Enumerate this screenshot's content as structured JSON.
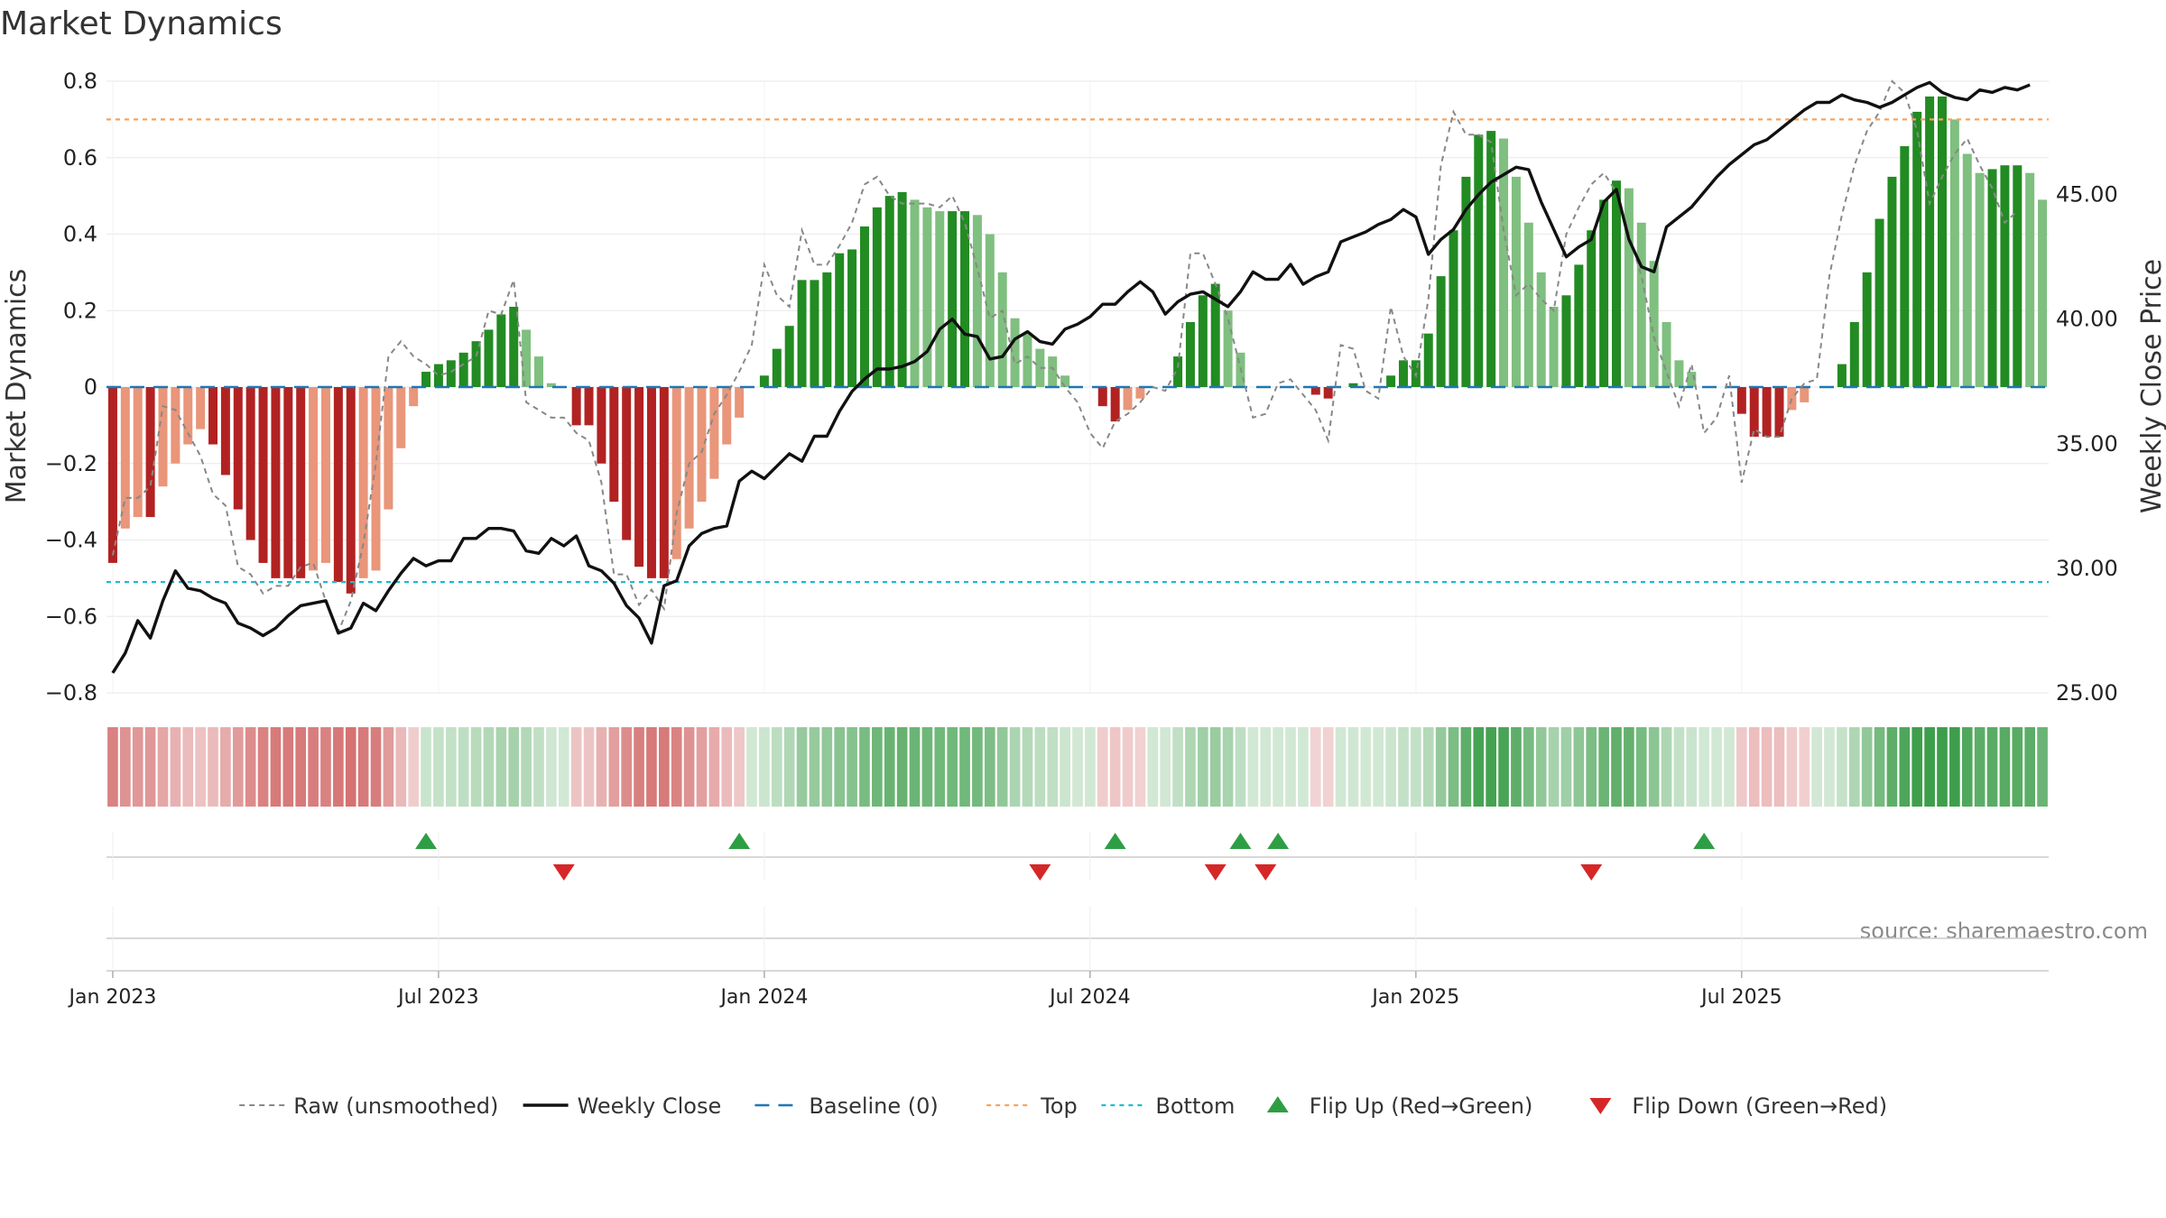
{
  "chart_data": {
    "type": "bar",
    "title": "Market Dynamics",
    "ylabel": "Market Dynamics",
    "y2label": "Weekly Close Price",
    "ylim": [
      -0.8,
      0.8
    ],
    "y2lim": [
      25.0,
      49.55
    ],
    "yticks": [
      "0.8",
      "0.6",
      "0.4",
      "0.2",
      "0",
      "−0.2",
      "−0.4",
      "−0.6",
      "−0.8"
    ],
    "yticks_values": [
      0.8,
      0.6,
      0.4,
      0.2,
      0,
      -0.2,
      -0.4,
      -0.6,
      -0.8
    ],
    "y2ticks": [
      "45.00",
      "40.00",
      "35.00",
      "30.00",
      "25.00"
    ],
    "y2ticks_values": [
      45,
      40,
      35,
      30,
      25
    ],
    "xticks": [
      "Jan 2023",
      "Jul 2023",
      "Jan 2024",
      "Jul 2024",
      "Jan 2025",
      "Jul 2025"
    ],
    "xticks_week_index": [
      0,
      26,
      52,
      78,
      104,
      130
    ],
    "top_level": 0.7,
    "bottom_level": -0.51,
    "baseline": 0,
    "grid": true,
    "legend_position": "bottom-center",
    "source": "source: sharemaestro.com",
    "colors": {
      "dark_red": "#b22222",
      "light_red": "#e9967a",
      "dark_green": "#228b22",
      "light_green": "#7fbf7f",
      "raw_line": "#888888",
      "close_line": "#111111",
      "baseline": "#1f77b4",
      "top": "#f4a460",
      "bottom": "#17becf",
      "flip_up": "#2e9e44",
      "flip_down": "#d62728"
    },
    "series": [
      {
        "name": "Market Dynamics",
        "values": [
          -0.46,
          -0.37,
          -0.34,
          -0.34,
          -0.26,
          -0.2,
          -0.15,
          -0.11,
          -0.15,
          -0.23,
          -0.32,
          -0.4,
          -0.46,
          -0.5,
          -0.5,
          -0.5,
          -0.48,
          -0.46,
          -0.51,
          -0.54,
          -0.5,
          -0.48,
          -0.32,
          -0.16,
          -0.05,
          0.04,
          0.06,
          0.07,
          0.09,
          0.12,
          0.15,
          0.19,
          0.21,
          0.15,
          0.08,
          0.01,
          0,
          -0.1,
          -0.1,
          -0.2,
          -0.3,
          -0.4,
          -0.47,
          -0.5,
          -0.5,
          -0.45,
          -0.37,
          -0.3,
          -0.24,
          -0.15,
          -0.08,
          0,
          0.03,
          0.1,
          0.16,
          0.28,
          0.28,
          0.3,
          0.35,
          0.36,
          0.42,
          0.47,
          0.5,
          0.51,
          0.49,
          0.47,
          0.46,
          0.46,
          0.46,
          0.45,
          0.4,
          0.3,
          0.18,
          0.14,
          0.1,
          0.08,
          0.03,
          0,
          0,
          -0.05,
          -0.09,
          -0.06,
          -0.03,
          0,
          0,
          0.08,
          0.17,
          0.24,
          0.27,
          0.2,
          0.09,
          0,
          0,
          0,
          0,
          0,
          -0.02,
          -0.03,
          0,
          0.01,
          0,
          0,
          0.03,
          0.07,
          0.07,
          0.14,
          0.29,
          0.41,
          0.55,
          0.66,
          0.67,
          0.65,
          0.55,
          0.43,
          0.3,
          0.21,
          0.24,
          0.32,
          0.41,
          0.49,
          0.54,
          0.52,
          0.43,
          0.33,
          0.17,
          0.07,
          0.04,
          0,
          0,
          0,
          -0.07,
          -0.13,
          -0.13,
          -0.13,
          -0.06,
          -0.04,
          0,
          0,
          0.06,
          0.17,
          0.3,
          0.44,
          0.55,
          0.63,
          0.72,
          0.76,
          0.76,
          0.7,
          0.61,
          0.56,
          0.57,
          0.58,
          0.58,
          0.56,
          0.49
        ]
      },
      {
        "name": "Raw (unsmoothed)",
        "values": [
          -0.44,
          -0.29,
          -0.29,
          -0.26,
          -0.05,
          -0.06,
          -0.12,
          -0.18,
          -0.28,
          -0.31,
          -0.47,
          -0.49,
          -0.54,
          -0.52,
          -0.52,
          -0.47,
          -0.46,
          -0.56,
          -0.64,
          -0.56,
          -0.41,
          -0.2,
          0.08,
          0.12,
          0.08,
          0.06,
          0.03,
          0.04,
          0.06,
          0.08,
          0.2,
          0.19,
          0.28,
          -0.04,
          -0.06,
          -0.08,
          -0.08,
          -0.12,
          -0.14,
          -0.25,
          -0.49,
          -0.49,
          -0.57,
          -0.53,
          -0.58,
          -0.33,
          -0.2,
          -0.17,
          -0.07,
          -0.02,
          0.04,
          0.11,
          0.32,
          0.24,
          0.21,
          0.41,
          0.32,
          0.32,
          0.37,
          0.43,
          0.53,
          0.55,
          0.5,
          0.48,
          0.48,
          0.48,
          0.47,
          0.5,
          0.43,
          0.31,
          0.18,
          0.2,
          0.06,
          0.08,
          0.05,
          0.05,
          0.0,
          -0.04,
          -0.12,
          -0.16,
          -0.09,
          -0.07,
          -0.04,
          0.0,
          -0.01,
          0.05,
          0.35,
          0.35,
          0.27,
          0.18,
          0.05,
          -0.08,
          -0.07,
          0.01,
          0.02,
          -0.02,
          -0.06,
          -0.14,
          0.11,
          0.1,
          -0.01,
          -0.03,
          0.21,
          0.08,
          0.03,
          0.23,
          0.58,
          0.72,
          0.66,
          0.66,
          0.64,
          0.41,
          0.24,
          0.27,
          0.23,
          0.2,
          0.4,
          0.47,
          0.53,
          0.56,
          0.51,
          0.4,
          0.29,
          0.13,
          0.04,
          -0.05,
          0.06,
          -0.12,
          -0.08,
          0.03,
          -0.25,
          -0.11,
          -0.13,
          -0.13,
          -0.03,
          0.01,
          0.02,
          0.29,
          0.45,
          0.58,
          0.67,
          0.72,
          0.8,
          0.77,
          0.67,
          0.48,
          0.55,
          0.61,
          0.65,
          0.58,
          0.52,
          0.43,
          0.46
        ]
      },
      {
        "name": "Weekly Close",
        "values": [
          25.8,
          26.6,
          27.9,
          27.2,
          28.7,
          29.9,
          29.2,
          29.1,
          28.8,
          28.6,
          27.8,
          27.6,
          27.3,
          27.6,
          28.1,
          28.5,
          28.6,
          28.7,
          27.4,
          27.6,
          28.6,
          28.3,
          29.1,
          29.8,
          30.4,
          30.1,
          30.3,
          30.3,
          31.2,
          31.2,
          31.6,
          31.6,
          31.5,
          30.7,
          30.6,
          31.2,
          30.9,
          31.3,
          30.1,
          29.9,
          29.4,
          28.5,
          28.0,
          27.0,
          29.3,
          29.5,
          30.9,
          31.4,
          31.6,
          31.7,
          33.5,
          33.9,
          33.6,
          34.1,
          34.6,
          34.3,
          35.3,
          35.3,
          36.3,
          37.1,
          37.6,
          38.0,
          38.0,
          38.1,
          38.3,
          38.7,
          39.6,
          40.0,
          39.4,
          39.3,
          38.4,
          38.5,
          39.2,
          39.5,
          39.1,
          39.0,
          39.6,
          39.8,
          40.1,
          40.6,
          40.6,
          41.1,
          41.5,
          41.1,
          40.2,
          40.7,
          41.0,
          41.1,
          40.8,
          40.5,
          41.1,
          41.9,
          41.6,
          41.6,
          42.2,
          41.4,
          41.7,
          41.9,
          43.1,
          43.3,
          43.5,
          43.8,
          44.0,
          44.4,
          44.1,
          42.6,
          43.2,
          43.6,
          44.4,
          45.0,
          45.5,
          45.8,
          46.1,
          46.0,
          44.7,
          43.6,
          42.5,
          42.9,
          43.2,
          44.7,
          45.2,
          43.2,
          42.1,
          41.9,
          43.7,
          44.1,
          44.5,
          45.1,
          45.7,
          46.2,
          46.6,
          47.0,
          47.2,
          47.6,
          48.0,
          48.4,
          48.7,
          48.7,
          49.0,
          48.8,
          48.7,
          48.5,
          48.7,
          49.0,
          49.3,
          49.5,
          49.1,
          48.9,
          48.8,
          49.2,
          49.1,
          49.3,
          49.2,
          49.4
        ]
      }
    ],
    "flip_up_weeks": [
      25,
      50,
      80,
      90,
      93,
      127
    ],
    "flip_down_weeks": [
      36,
      74,
      88,
      92,
      118
    ],
    "legend": [
      {
        "key": "raw",
        "label": "Raw (unsmoothed)"
      },
      {
        "key": "close",
        "label": "Weekly Close"
      },
      {
        "key": "baseline",
        "label": "Baseline (0)"
      },
      {
        "key": "top",
        "label": "Top"
      },
      {
        "key": "bottom",
        "label": "Bottom"
      },
      {
        "key": "flip_up",
        "label": "Flip Up (Red→Green)"
      },
      {
        "key": "flip_down",
        "label": "Flip Down (Green→Red)"
      }
    ]
  }
}
